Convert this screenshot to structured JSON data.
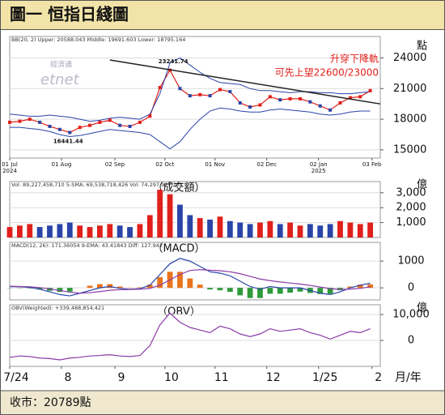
{
  "header": {
    "title": "圖一 恒指日綫圖"
  },
  "footer": {
    "text": "收市：20789點"
  },
  "watermark": [
    "經濟通",
    "etnet"
  ],
  "chart_data": [
    {
      "type": "price",
      "info": "BB(20, 2)  Upper: 20588.043  Middle: 19691.603  Lower: 18795.164",
      "y_unit": "點",
      "xlim": [
        0,
        222
      ],
      "ylim": [
        14200,
        26100
      ],
      "yticks": [
        15000,
        18000,
        21000,
        24000
      ],
      "grid": true,
      "xticks": [
        {
          "value": 0,
          "label": "01 Jul"
        },
        {
          "value": 31,
          "label": "01 Aug"
        },
        {
          "value": 63,
          "label": "02 Sep"
        },
        {
          "value": 93,
          "label": "02 Oct"
        },
        {
          "value": 123,
          "label": "01 Nov"
        },
        {
          "value": 154,
          "label": "02 Dec"
        },
        {
          "value": 185,
          "label": "02 Jan"
        },
        {
          "value": 217,
          "label": "03 Feb"
        }
      ],
      "year_labels": [
        {
          "value": 0,
          "label": "2024"
        },
        {
          "value": 185,
          "label": "2025"
        }
      ],
      "x": [
        0,
        6,
        12,
        18,
        24,
        30,
        36,
        42,
        48,
        54,
        60,
        66,
        72,
        78,
        84,
        90,
        96,
        102,
        108,
        114,
        120,
        126,
        132,
        138,
        144,
        150,
        156,
        162,
        168,
        174,
        180,
        186,
        192,
        198,
        204,
        210,
        216
      ],
      "series": [
        {
          "color": "#e0201b",
          "values": [
            17700,
            17800,
            18000,
            17700,
            17300,
            17000,
            16700,
            17200,
            17400,
            17700,
            17900,
            17400,
            17300,
            17700,
            18300,
            21100,
            22800,
            21000,
            20300,
            20400,
            20300,
            20900,
            20700,
            19600,
            19200,
            19400,
            20200,
            19900,
            20000,
            20000,
            19700,
            19300,
            18900,
            19600,
            20100,
            20200,
            20800
          ]
        },
        {
          "color": "#2a44a8",
          "values": [
            18500,
            18400,
            18300,
            18300,
            18400,
            18300,
            18200,
            18000,
            17800,
            17900,
            18100,
            18200,
            18100,
            18000,
            18500,
            20500,
            23500,
            24000,
            23300,
            22600,
            22000,
            21600,
            21500,
            21400,
            21000,
            20800,
            20800,
            20700,
            20600,
            20700,
            20700,
            20600,
            20600,
            20500,
            20500,
            20600,
            20700
          ]
        },
        {
          "color": "#2a44a8",
          "values": [
            17200,
            17200,
            17100,
            17000,
            16800,
            16500,
            16300,
            16400,
            16600,
            16800,
            17000,
            16900,
            16800,
            16700,
            16500,
            15800,
            15100,
            15800,
            17000,
            18000,
            18800,
            19100,
            19000,
            18800,
            18700,
            18700,
            18900,
            19000,
            18900,
            18800,
            18700,
            18500,
            18400,
            18500,
            18700,
            18800,
            18800
          ]
        }
      ],
      "trendline": {
        "color": "#222",
        "x": [
          60,
          222
        ],
        "y": [
          23800,
          19500
        ]
      },
      "annotations": [
        {
          "label": "23241.74",
          "x": 98,
          "y": 23241.74
        },
        {
          "label": "16441.44",
          "x": 35,
          "y": 16441.44
        }
      ],
      "notes": [
        "升穿下降軌",
        "可先上望22600/23000"
      ]
    },
    {
      "type": "bar",
      "info": "Vol: 89,227,458,710  5-SMA: 69,538,718,426  Vol: 74,297,927,261",
      "subtitle": "（成交額）",
      "y_unit": "億",
      "xlim": [
        0,
        222
      ],
      "ylim": [
        0,
        3750
      ],
      "yticks": [
        {
          "value": 1000,
          "label": "1,000"
        },
        {
          "value": 2000,
          "label": "2,000"
        },
        {
          "value": 3000,
          "label": "3,000"
        }
      ],
      "up_color": "#e0201b",
      "down_color": "#2a44a8",
      "x": [
        0,
        6,
        12,
        18,
        24,
        30,
        36,
        42,
        48,
        54,
        60,
        66,
        72,
        78,
        84,
        90,
        96,
        102,
        108,
        114,
        120,
        126,
        132,
        138,
        144,
        150,
        156,
        162,
        168,
        174,
        180,
        186,
        192,
        198,
        204,
        210,
        216
      ],
      "values": [
        700,
        800,
        900,
        700,
        800,
        900,
        1000,
        800,
        700,
        800,
        900,
        800,
        700,
        900,
        1500,
        3200,
        2900,
        2200,
        1500,
        1300,
        1200,
        1400,
        1100,
        1000,
        900,
        1000,
        1100,
        900,
        1000,
        800,
        900,
        800,
        900,
        1100,
        1000,
        900,
        1000
      ]
    },
    {
      "type": "macd",
      "info": "MACD(12, 26): 171.36054  9-EMA: 43.41843  Diff: 127.942",
      "subtitle": "（MACD）",
      "xlim": [
        0,
        222
      ],
      "ylim": [
        -450,
        1700
      ],
      "yticks": [
        0,
        1000
      ],
      "x": [
        0,
        6,
        12,
        18,
        24,
        30,
        36,
        42,
        48,
        54,
        60,
        66,
        72,
        78,
        84,
        90,
        96,
        102,
        108,
        114,
        120,
        126,
        132,
        138,
        144,
        150,
        156,
        162,
        168,
        174,
        180,
        186,
        192,
        198,
        204,
        210,
        216
      ],
      "series": [
        {
          "color": "#2a44a8",
          "values": [
            50,
            40,
            20,
            -50,
            -150,
            -250,
            -300,
            -200,
            -100,
            0,
            50,
            -20,
            -50,
            -30,
            100,
            500,
            900,
            1100,
            1000,
            800,
            600,
            550,
            450,
            250,
            50,
            -50,
            50,
            0,
            0,
            0,
            -100,
            -200,
            -250,
            -150,
            0,
            100,
            170
          ]
        },
        {
          "color": "#8a3aa8",
          "values": [
            60,
            50,
            40,
            10,
            -40,
            -100,
            -160,
            -200,
            -180,
            -140,
            -90,
            -70,
            -60,
            -50,
            -20,
            100,
            300,
            500,
            650,
            680,
            660,
            640,
            600,
            530,
            430,
            330,
            270,
            220,
            180,
            140,
            90,
            30,
            -30,
            -60,
            -50,
            -20,
            40
          ]
        }
      ],
      "hist": {
        "up_color": "#e8741c",
        "down_color": "#2f9a3a",
        "values": [
          -10,
          -10,
          -20,
          -60,
          -110,
          -150,
          -140,
          0,
          80,
          140,
          140,
          50,
          10,
          20,
          120,
          400,
          600,
          600,
          350,
          120,
          -60,
          -90,
          -150,
          -280,
          -380,
          -380,
          -220,
          -220,
          -180,
          -140,
          -190,
          -230,
          -220,
          -90,
          50,
          120,
          130
        ]
      }
    },
    {
      "type": "line",
      "info": "OBV(Weighted): +339,488,854,421",
      "subtitle": "（OBV）",
      "y_unit": "億",
      "xlim": [
        0,
        222
      ],
      "ylim": [
        -10000,
        13750
      ],
      "yticks": [
        0,
        {
          "value": 10000,
          "label": "10,000"
        }
      ],
      "xticks": [
        {
          "value": 0,
          "label": "7/24"
        },
        {
          "value": 31,
          "label": "8"
        },
        {
          "value": 63,
          "label": "9"
        },
        {
          "value": 93,
          "label": "10"
        },
        {
          "value": 123,
          "label": "11"
        },
        {
          "value": 154,
          "label": "12"
        },
        {
          "value": 185,
          "label": "1/25"
        },
        {
          "value": 217,
          "label": "2"
        }
      ],
      "x_label": "月/年",
      "x": [
        0,
        6,
        12,
        18,
        24,
        30,
        36,
        42,
        48,
        54,
        60,
        66,
        72,
        78,
        84,
        90,
        96,
        102,
        108,
        114,
        120,
        126,
        132,
        138,
        144,
        150,
        156,
        162,
        168,
        174,
        180,
        186,
        192,
        198,
        204,
        210,
        216
      ],
      "series": [
        {
          "color": "#8a3aa8",
          "values": [
            -6500,
            -6000,
            -6200,
            -6800,
            -7000,
            -7500,
            -6800,
            -6500,
            -6000,
            -5800,
            -5500,
            -6000,
            -6200,
            -5800,
            -2000,
            6000,
            10500,
            7000,
            5000,
            4000,
            3000,
            5500,
            4500,
            2500,
            1500,
            2500,
            4500,
            3500,
            4000,
            4500,
            3000,
            2000,
            500,
            2000,
            3500,
            3000,
            4500
          ]
        }
      ]
    }
  ]
}
